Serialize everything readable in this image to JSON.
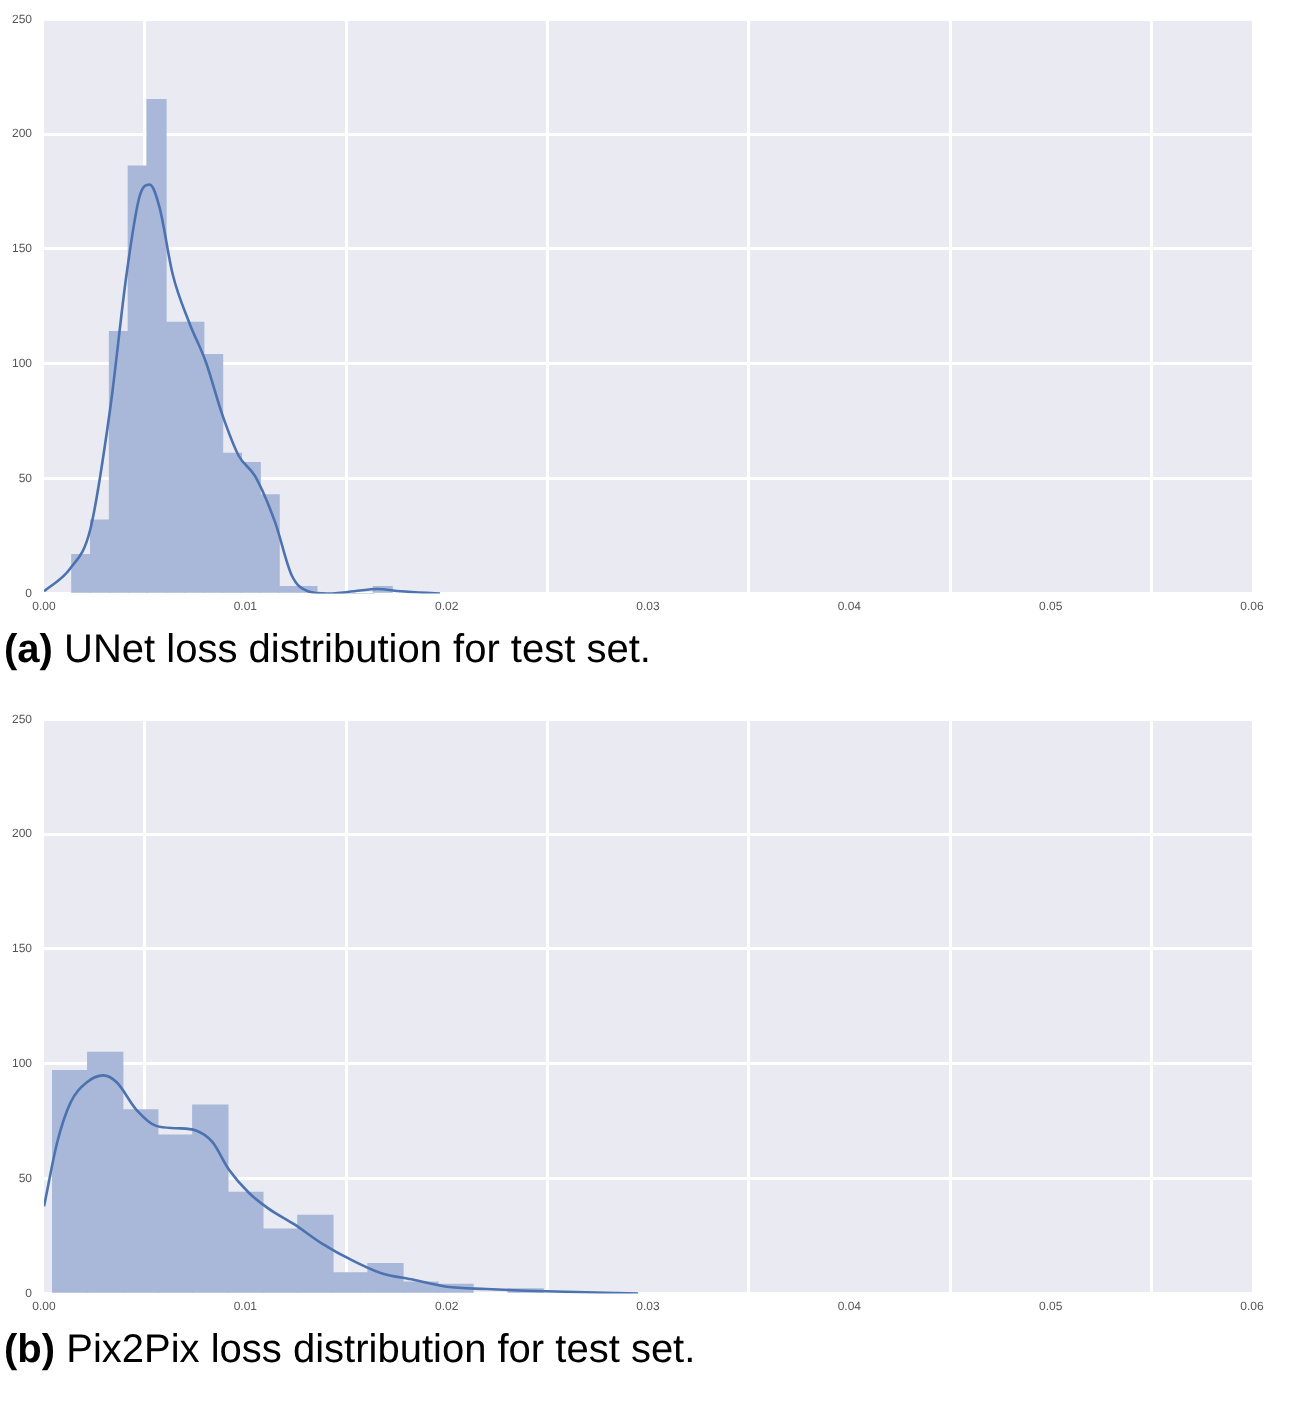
{
  "chart_data": [
    {
      "type": "histogram",
      "annotations": [
        "(a) UNet loss distribution for test set."
      ],
      "xlim": [
        0,
        0.06
      ],
      "ylim": [
        0,
        250
      ],
      "xticks": [
        {
          "value": 0,
          "label": "0.00"
        },
        {
          "value": 0.01,
          "label": "0.01"
        },
        {
          "value": 0.02,
          "label": "0.02"
        },
        {
          "value": 0.03,
          "label": "0.03"
        },
        {
          "value": 0.04,
          "label": "0.04"
        },
        {
          "value": 0.05,
          "label": "0.05"
        },
        {
          "value": 0.06,
          "label": "0.06"
        }
      ],
      "yticks": [
        0,
        50,
        100,
        150,
        200,
        250
      ],
      "grid": true,
      "series": [
        {
          "type": "histogram",
          "color": "#a9b8d8",
          "bins": [
            0.00138,
            0.00232,
            0.00325,
            0.00419,
            0.00512,
            0.00606,
            0.007,
            0.00793,
            0.00887,
            0.0098,
            0.01074,
            0.01168,
            0.01261,
            0.01355,
            0.01448,
            0.01542,
            0.01636,
            0.01729
          ],
          "values": [
            17,
            32,
            114,
            186,
            215,
            118,
            118,
            104,
            61,
            57,
            43,
            3,
            3,
            0,
            0,
            0,
            3
          ]
        },
        {
          "type": "line",
          "color": "#4c72b0",
          "x": [
            0,
            0.00131,
            0.0023,
            0.00328,
            0.0041,
            0.00475,
            0.00525,
            0.00574,
            0.00639,
            0.00721,
            0.00803,
            0.00885,
            0.00967,
            0.01049,
            0.01148,
            0.0123,
            0.01311,
            0.0141,
            0.01541,
            0.01656,
            0.0177,
            0.01967
          ],
          "values": [
            1,
            11,
            28,
            80,
            139,
            173,
            178,
            168,
            139,
            118,
            101,
            78,
            60,
            51,
            31,
            8,
            1,
            0,
            1,
            2,
            1,
            0
          ]
        }
      ]
    },
    {
      "type": "histogram",
      "annotations": [
        "(b) Pix2Pix loss distribution for test set."
      ],
      "xlim": [
        0,
        0.06
      ],
      "ylim": [
        0,
        250
      ],
      "xticks": [
        {
          "value": 0,
          "label": "0.00"
        },
        {
          "value": 0.01,
          "label": "0.01"
        },
        {
          "value": 0.02,
          "label": "0.02"
        },
        {
          "value": 0.03,
          "label": "0.03"
        },
        {
          "value": 0.04,
          "label": "0.04"
        },
        {
          "value": 0.05,
          "label": "0.05"
        },
        {
          "value": 0.06,
          "label": "0.06"
        }
      ],
      "yticks": [
        0,
        50,
        100,
        150,
        200,
        250
      ],
      "grid": true,
      "series": [
        {
          "type": "histogram",
          "color": "#a9b8d8",
          "bins": [
            0.00043,
            0.00217,
            0.00391,
            0.00565,
            0.00739,
            0.00913,
            0.01087,
            0.01261,
            0.01435,
            0.01609,
            0.01783,
            0.01957,
            0.02131,
            0.02305,
            0.02479,
            0.02653
          ],
          "values": [
            97,
            105,
            80,
            69,
            82,
            44,
            28,
            34,
            9,
            13,
            5,
            4,
            null,
            2,
            null
          ]
        },
        {
          "type": "line",
          "color": "#4c72b0",
          "x": [
            0,
            0.00066,
            0.00131,
            0.00213,
            0.00295,
            0.00361,
            0.00459,
            0.00557,
            0.00656,
            0.00754,
            0.00836,
            0.00918,
            0.01016,
            0.01115,
            0.01246,
            0.01377,
            0.01541,
            0.01672,
            0.01836,
            0.02,
            0.02197,
            0.02492,
            0.02951
          ],
          "values": [
            38,
            66,
            83,
            92,
            95,
            92,
            80,
            73,
            72,
            71,
            66,
            54,
            44,
            37,
            30,
            22,
            14,
            9,
            6,
            3,
            2,
            1,
            0
          ]
        }
      ]
    }
  ]
}
